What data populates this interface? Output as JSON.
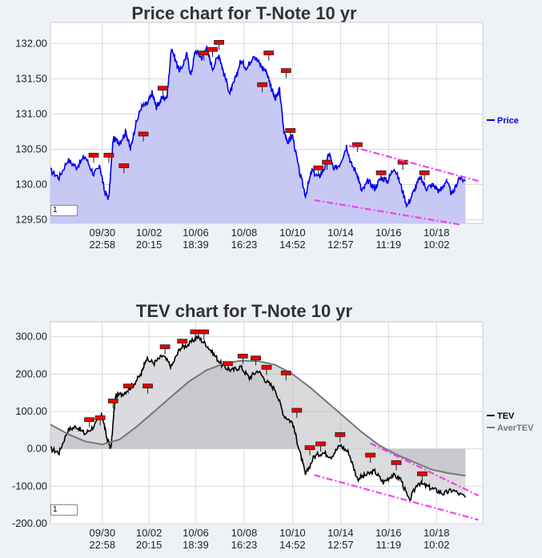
{
  "charts": [
    {
      "id": "price",
      "title": "Price chart for T-Note 10 yr",
      "input_value": "1",
      "chart_data": {
        "type": "area",
        "title": "Price chart for T-Note 10 yr",
        "ylim": [
          129.45,
          132.3
        ],
        "y_ticks": [
          "132.00",
          "131.50",
          "131.00",
          "130.50",
          "130.00",
          "129.50"
        ],
        "y_tick_values": [
          132.0,
          131.5,
          131.0,
          130.5,
          130.0,
          129.5
        ],
        "x_ticks": [
          {
            "date": "09/30",
            "time": "22:58",
            "t": 0.12
          },
          {
            "date": "10/02",
            "time": "20:15",
            "t": 0.228
          },
          {
            "date": "10/06",
            "time": "18:39",
            "t": 0.336
          },
          {
            "date": "10/08",
            "time": "16:23",
            "t": 0.448
          },
          {
            "date": "10/10",
            "time": "14:52",
            "t": 0.56
          },
          {
            "date": "10/14",
            "time": "12:57",
            "t": 0.671
          },
          {
            "date": "10/16",
            "time": "11:19",
            "t": 0.782
          },
          {
            "date": "10/18",
            "time": "10:02",
            "t": 0.893
          }
        ],
        "series": [
          {
            "name": "Price",
            "color": "#0000ee",
            "fill": "#c8c8f4",
            "points": [
              [
                0.0,
                130.2
              ],
              [
                0.02,
                130.1
              ],
              [
                0.04,
                130.35
              ],
              [
                0.06,
                130.25
              ],
              [
                0.08,
                130.4
              ],
              [
                0.1,
                130.15
              ],
              [
                0.115,
                130.25
              ],
              [
                0.125,
                129.9
              ],
              [
                0.135,
                129.8
              ],
              [
                0.145,
                130.65
              ],
              [
                0.16,
                130.6
              ],
              [
                0.175,
                130.75
              ],
              [
                0.185,
                130.5
              ],
              [
                0.195,
                130.8
              ],
              [
                0.21,
                131.1
              ],
              [
                0.225,
                131.15
              ],
              [
                0.235,
                131.3
              ],
              [
                0.245,
                131.1
              ],
              [
                0.255,
                131.2
              ],
              [
                0.27,
                131.25
              ],
              [
                0.28,
                131.95
              ],
              [
                0.29,
                131.75
              ],
              [
                0.3,
                131.6
              ],
              [
                0.315,
                131.85
              ],
              [
                0.325,
                131.55
              ],
              [
                0.335,
                131.9
              ],
              [
                0.35,
                131.8
              ],
              [
                0.36,
                131.95
              ],
              [
                0.375,
                131.65
              ],
              [
                0.39,
                131.85
              ],
              [
                0.4,
                131.6
              ],
              [
                0.415,
                131.3
              ],
              [
                0.425,
                131.45
              ],
              [
                0.44,
                131.75
              ],
              [
                0.455,
                131.65
              ],
              [
                0.47,
                131.85
              ],
              [
                0.485,
                131.7
              ],
              [
                0.5,
                131.6
              ],
              [
                0.51,
                131.4
              ],
              [
                0.52,
                131.2
              ],
              [
                0.53,
                131.35
              ],
              [
                0.54,
                130.75
              ],
              [
                0.55,
                130.6
              ],
              [
                0.56,
                130.7
              ],
              [
                0.575,
                130.2
              ],
              [
                0.59,
                129.85
              ],
              [
                0.605,
                130.2
              ],
              [
                0.62,
                130.1
              ],
              [
                0.635,
                130.25
              ],
              [
                0.645,
                130.45
              ],
              [
                0.655,
                130.2
              ],
              [
                0.67,
                130.3
              ],
              [
                0.685,
                130.55
              ],
              [
                0.695,
                130.3
              ],
              [
                0.71,
                130.15
              ],
              [
                0.72,
                129.9
              ],
              [
                0.735,
                130.05
              ],
              [
                0.75,
                129.95
              ],
              [
                0.765,
                130.1
              ],
              [
                0.78,
                130.05
              ],
              [
                0.795,
                130.25
              ],
              [
                0.81,
                130.0
              ],
              [
                0.825,
                129.7
              ],
              [
                0.84,
                129.9
              ],
              [
                0.855,
                130.1
              ],
              [
                0.87,
                129.95
              ],
              [
                0.885,
                130.0
              ],
              [
                0.9,
                129.9
              ],
              [
                0.915,
                130.05
              ],
              [
                0.93,
                129.85
              ],
              [
                0.945,
                130.1
              ],
              [
                0.96,
                130.05
              ]
            ]
          }
        ],
        "trend_lines": [
          {
            "from": [
              0.69,
              130.55
            ],
            "to": [
              0.99,
              130.05
            ]
          },
          {
            "from": [
              0.61,
              129.78
            ],
            "to": [
              0.95,
              129.43
            ]
          }
        ],
        "markers": [
          [
            0.1,
            130.4
          ],
          [
            0.135,
            130.4
          ],
          [
            0.17,
            130.25
          ],
          [
            0.215,
            130.7
          ],
          [
            0.26,
            131.35
          ],
          [
            0.355,
            131.85
          ],
          [
            0.375,
            131.9
          ],
          [
            0.39,
            132.0
          ],
          [
            0.49,
            131.4
          ],
          [
            0.505,
            131.85
          ],
          [
            0.545,
            131.6
          ],
          [
            0.555,
            130.75
          ],
          [
            0.62,
            130.22
          ],
          [
            0.64,
            130.3
          ],
          [
            0.71,
            130.55
          ],
          [
            0.765,
            130.15
          ],
          [
            0.815,
            130.3
          ],
          [
            0.865,
            130.15
          ]
        ],
        "legend": "right"
      }
    },
    {
      "id": "tev",
      "title": "TEV chart for T-Note 10 yr",
      "input_value": "1",
      "chart_data": {
        "type": "line",
        "title": "TEV chart for T-Note 10 yr",
        "ylim": [
          -200,
          340
        ],
        "y_ticks": [
          "300.00",
          "200.00",
          "100.00",
          "0.00",
          "-100.00",
          "-200.00"
        ],
        "y_tick_values": [
          300,
          200,
          100,
          0,
          -100,
          -200
        ],
        "x_ticks": [
          {
            "date": "09/30",
            "time": "22:58",
            "t": 0.12
          },
          {
            "date": "10/02",
            "time": "20:15",
            "t": 0.228
          },
          {
            "date": "10/06",
            "time": "18:39",
            "t": 0.336
          },
          {
            "date": "10/08",
            "time": "16:23",
            "t": 0.448
          },
          {
            "date": "10/10",
            "time": "14:52",
            "t": 0.56
          },
          {
            "date": "10/14",
            "time": "12:57",
            "t": 0.671
          },
          {
            "date": "10/16",
            "time": "11:19",
            "t": 0.782
          },
          {
            "date": "10/18",
            "time": "10:02",
            "t": 0.893
          }
        ],
        "series": [
          {
            "name": "TEV",
            "color": "#000000",
            "points": [
              [
                0.0,
                0
              ],
              [
                0.02,
                -10
              ],
              [
                0.04,
                50
              ],
              [
                0.06,
                60
              ],
              [
                0.08,
                40
              ],
              [
                0.1,
                60
              ],
              [
                0.12,
                90
              ],
              [
                0.13,
                30
              ],
              [
                0.14,
                0
              ],
              [
                0.15,
                140
              ],
              [
                0.17,
                150
              ],
              [
                0.19,
                170
              ],
              [
                0.21,
                200
              ],
              [
                0.22,
                240
              ],
              [
                0.24,
                230
              ],
              [
                0.26,
                250
              ],
              [
                0.28,
                220
              ],
              [
                0.3,
                270
              ],
              [
                0.32,
                280
              ],
              [
                0.34,
                300
              ],
              [
                0.36,
                280
              ],
              [
                0.38,
                250
              ],
              [
                0.4,
                220
              ],
              [
                0.42,
                210
              ],
              [
                0.44,
                220
              ],
              [
                0.46,
                190
              ],
              [
                0.48,
                210
              ],
              [
                0.5,
                180
              ],
              [
                0.52,
                160
              ],
              [
                0.54,
                90
              ],
              [
                0.56,
                70
              ],
              [
                0.575,
                0
              ],
              [
                0.59,
                -70
              ],
              [
                0.61,
                -20
              ],
              [
                0.63,
                -10
              ],
              [
                0.65,
                -20
              ],
              [
                0.67,
                10
              ],
              [
                0.69,
                -10
              ],
              [
                0.71,
                -80
              ],
              [
                0.73,
                -70
              ],
              [
                0.75,
                -60
              ],
              [
                0.77,
                -90
              ],
              [
                0.79,
                -70
              ],
              [
                0.81,
                -80
              ],
              [
                0.83,
                -140
              ],
              [
                0.85,
                -90
              ],
              [
                0.87,
                -100
              ],
              [
                0.89,
                -110
              ],
              [
                0.91,
                -120
              ],
              [
                0.93,
                -110
              ],
              [
                0.96,
                -130
              ]
            ]
          },
          {
            "name": "AverTEV",
            "color": "#777777",
            "points": [
              [
                0.0,
                65
              ],
              [
                0.04,
                40
              ],
              [
                0.08,
                20
              ],
              [
                0.12,
                12
              ],
              [
                0.16,
                25
              ],
              [
                0.2,
                60
              ],
              [
                0.24,
                100
              ],
              [
                0.28,
                140
              ],
              [
                0.32,
                180
              ],
              [
                0.36,
                210
              ],
              [
                0.4,
                228
              ],
              [
                0.44,
                236
              ],
              [
                0.48,
                235
              ],
              [
                0.52,
                225
              ],
              [
                0.56,
                200
              ],
              [
                0.6,
                165
              ],
              [
                0.64,
                125
              ],
              [
                0.68,
                85
              ],
              [
                0.72,
                45
              ],
              [
                0.76,
                10
              ],
              [
                0.8,
                -15
              ],
              [
                0.84,
                -35
              ],
              [
                0.88,
                -55
              ],
              [
                0.92,
                -65
              ],
              [
                0.96,
                -72
              ]
            ]
          }
        ],
        "trend_lines": [
          {
            "from": [
              0.74,
              15
            ],
            "to": [
              0.99,
              -125
            ]
          },
          {
            "from": [
              0.61,
              -70
            ],
            "to": [
              0.99,
              -190
            ]
          }
        ],
        "markers": [
          [
            0.09,
            75
          ],
          [
            0.115,
            80
          ],
          [
            0.145,
            125
          ],
          [
            0.18,
            165
          ],
          [
            0.225,
            165
          ],
          [
            0.265,
            270
          ],
          [
            0.305,
            285
          ],
          [
            0.335,
            310
          ],
          [
            0.355,
            310
          ],
          [
            0.41,
            225
          ],
          [
            0.445,
            245
          ],
          [
            0.475,
            240
          ],
          [
            0.5,
            215
          ],
          [
            0.545,
            200
          ],
          [
            0.57,
            100
          ],
          [
            0.6,
            0
          ],
          [
            0.625,
            10
          ],
          [
            0.67,
            35
          ],
          [
            0.74,
            -20
          ],
          [
            0.8,
            -40
          ],
          [
            0.86,
            -70
          ]
        ],
        "legend": "right"
      }
    }
  ]
}
